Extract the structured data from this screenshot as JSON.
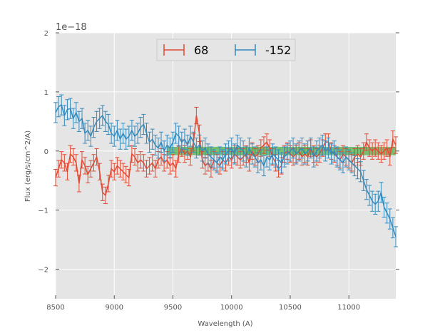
{
  "chart_data": {
    "type": "line",
    "title": "",
    "xlabel": "Wavelength (A)",
    "ylabel": "Flux (erg/s/cm^2/A)",
    "offset_text": "1e−18",
    "xlim": [
      8500,
      11400
    ],
    "ylim": [
      -2.5,
      2.0
    ],
    "xticks": [
      8500,
      9000,
      9500,
      10000,
      10500,
      11000
    ],
    "xtick_labels": [
      "8500",
      "9000",
      "9500",
      "10000",
      "10500",
      "11000"
    ],
    "yticks": [
      -2,
      -1,
      0,
      1,
      2
    ],
    "ytick_labels": [
      "−2",
      "−1",
      "0",
      "1",
      "2"
    ],
    "grid": true,
    "background": "#e5e5e5",
    "legend_position": "upper-center",
    "band": {
      "x_start": 9450,
      "x_end": 11400,
      "y_low": -0.07,
      "y_high": 0.07,
      "color": "#4daf4a"
    },
    "series": [
      {
        "name": "68",
        "color": "#e24a33",
        "x": [
          8500,
          8525,
          8550,
          8575,
          8600,
          8625,
          8650,
          8675,
          8700,
          8725,
          8750,
          8775,
          8800,
          8825,
          8850,
          8875,
          8900,
          8925,
          8950,
          8975,
          9000,
          9025,
          9050,
          9075,
          9100,
          9125,
          9150,
          9175,
          9200,
          9225,
          9250,
          9275,
          9300,
          9325,
          9350,
          9375,
          9400,
          9425,
          9450,
          9475,
          9500,
          9525,
          9550,
          9575,
          9600,
          9625,
          9650,
          9675,
          9700,
          9725,
          9750,
          9775,
          9800,
          9825,
          9850,
          9875,
          9900,
          9925,
          9950,
          9975,
          10000,
          10025,
          10050,
          10075,
          10100,
          10125,
          10150,
          10175,
          10200,
          10225,
          10250,
          10275,
          10300,
          10325,
          10350,
          10375,
          10400,
          10425,
          10450,
          10475,
          10500,
          10525,
          10550,
          10575,
          10600,
          10625,
          10650,
          10675,
          10700,
          10725,
          10750,
          10775,
          10800,
          10825,
          10850,
          10875,
          10900,
          10925,
          10950,
          10975,
          11000,
          11025,
          11050,
          11075,
          11100,
          11125,
          11150,
          11175,
          11200,
          11225,
          11250,
          11275,
          11300,
          11325,
          11350,
          11375,
          11400
        ],
        "y": [
          -0.45,
          -0.3,
          -0.15,
          -0.2,
          -0.35,
          -0.05,
          -0.1,
          -0.2,
          -0.55,
          -0.15,
          -0.25,
          -0.4,
          -0.3,
          -0.2,
          -0.1,
          -0.35,
          -0.7,
          -0.75,
          -0.55,
          -0.3,
          -0.35,
          -0.25,
          -0.3,
          -0.35,
          -0.4,
          -0.45,
          -0.05,
          -0.1,
          -0.2,
          -0.15,
          -0.2,
          -0.3,
          -0.25,
          -0.2,
          -0.3,
          -0.15,
          -0.1,
          -0.2,
          -0.15,
          -0.25,
          -0.2,
          -0.3,
          -0.05,
          0.05,
          -0.05,
          0.0,
          -0.1,
          0.15,
          0.6,
          0.3,
          -0.15,
          -0.25,
          -0.2,
          -0.3,
          -0.15,
          -0.2,
          -0.25,
          -0.15,
          -0.2,
          -0.1,
          -0.15,
          -0.05,
          -0.1,
          -0.15,
          -0.1,
          -0.05,
          -0.2,
          0.0,
          -0.1,
          -0.05,
          0.05,
          0.1,
          0.15,
          0.05,
          -0.1,
          -0.2,
          -0.3,
          -0.25,
          -0.05,
          0.0,
          -0.05,
          -0.1,
          -0.05,
          0.0,
          -0.1,
          -0.05,
          -0.1,
          0.05,
          -0.05,
          -0.1,
          -0.05,
          0.05,
          0.15,
          0.15,
          0.0,
          -0.05,
          -0.1,
          -0.15,
          -0.05,
          -0.1,
          -0.15,
          -0.2,
          -0.1,
          -0.05,
          -0.1,
          0.0,
          0.15,
          0.05,
          0.0,
          0.05,
          0.0,
          -0.05,
          0.0,
          0.05,
          -0.1,
          0.2,
          0.1
        ],
        "error": 0.14
      },
      {
        "name": "-152",
        "color": "#348abd",
        "x": [
          8500,
          8525,
          8550,
          8575,
          8600,
          8625,
          8650,
          8675,
          8700,
          8725,
          8750,
          8775,
          8800,
          8825,
          8850,
          8875,
          8900,
          8925,
          8950,
          8975,
          9000,
          9025,
          9050,
          9075,
          9100,
          9125,
          9150,
          9175,
          9200,
          9225,
          9250,
          9275,
          9300,
          9325,
          9350,
          9375,
          9400,
          9425,
          9450,
          9475,
          9500,
          9525,
          9550,
          9575,
          9600,
          9625,
          9650,
          9675,
          9700,
          9725,
          9750,
          9775,
          9800,
          9825,
          9850,
          9875,
          9900,
          9925,
          9950,
          9975,
          10000,
          10025,
          10050,
          10075,
          10100,
          10125,
          10150,
          10175,
          10200,
          10225,
          10250,
          10275,
          10300,
          10325,
          10350,
          10375,
          10400,
          10425,
          10450,
          10475,
          10500,
          10525,
          10550,
          10575,
          10600,
          10625,
          10650,
          10675,
          10700,
          10725,
          10750,
          10775,
          10800,
          10825,
          10850,
          10875,
          10900,
          10925,
          10950,
          10975,
          11000,
          11025,
          11050,
          11075,
          11100,
          11125,
          11150,
          11175,
          11200,
          11225,
          11250,
          11275,
          11300,
          11325,
          11350,
          11375,
          11400
        ],
        "y": [
          0.65,
          0.75,
          0.78,
          0.6,
          0.7,
          0.72,
          0.55,
          0.65,
          0.5,
          0.55,
          0.3,
          0.35,
          0.25,
          0.4,
          0.5,
          0.55,
          0.6,
          0.5,
          0.45,
          0.3,
          0.25,
          0.35,
          0.2,
          0.3,
          0.2,
          0.25,
          0.35,
          0.25,
          0.3,
          0.4,
          0.45,
          0.3,
          0.15,
          0.2,
          0.1,
          0.05,
          0.15,
          0.0,
          0.1,
          0.05,
          0.15,
          0.3,
          0.25,
          0.15,
          0.2,
          0.1,
          0.25,
          0.15,
          0.05,
          0.1,
          0.0,
          0.05,
          -0.05,
          -0.1,
          -0.15,
          -0.2,
          -0.1,
          -0.15,
          -0.05,
          0.0,
          0.05,
          -0.05,
          0.1,
          0.05,
          0.0,
          -0.1,
          0.05,
          -0.05,
          -0.1,
          -0.2,
          -0.15,
          -0.25,
          -0.1,
          -0.15,
          -0.05,
          -0.1,
          -0.15,
          -0.2,
          -0.1,
          -0.05,
          0.0,
          0.05,
          -0.05,
          0.0,
          0.05,
          -0.05,
          0.0,
          0.05,
          -0.1,
          0.0,
          0.05,
          0.1,
          0.0,
          0.05,
          -0.05,
          0.0,
          -0.1,
          -0.15,
          -0.2,
          -0.1,
          -0.15,
          -0.2,
          -0.25,
          -0.3,
          -0.35,
          -0.5,
          -0.65,
          -0.75,
          -0.85,
          -0.9,
          -0.85,
          -0.7,
          -0.95,
          -1.05,
          -1.15,
          -1.3,
          -1.45
        ],
        "error": 0.17
      }
    ]
  }
}
